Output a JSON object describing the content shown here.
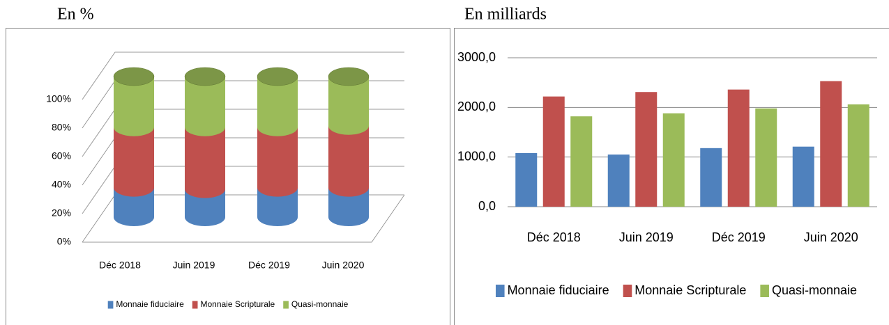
{
  "chart_data": [
    {
      "type": "cylinder",
      "title": "En %",
      "categories": [
        "Déc 2018",
        "Juin 2019",
        "Déc 2019",
        "Juin 2020"
      ],
      "series": [
        {
          "name": "Monnaie fiduciaire",
          "color": "#4f81bd",
          "values": [
            21,
            20,
            21,
            21
          ]
        },
        {
          "name": "Monnaie Scripturale",
          "color": "#c0504d",
          "values": [
            43,
            44,
            43,
            44
          ]
        },
        {
          "name": "Quasi-monnaie",
          "color": "#9bbb59",
          "values": [
            36,
            36,
            36,
            35
          ]
        }
      ],
      "ylim": [
        0,
        100
      ],
      "yticks": [
        {
          "value": 0,
          "label": "0%"
        },
        {
          "value": 20,
          "label": "20%"
        },
        {
          "value": 40,
          "label": "40%"
        },
        {
          "value": 60,
          "label": "60%"
        },
        {
          "value": 80,
          "label": "80%"
        },
        {
          "value": 100,
          "label": "100%"
        }
      ],
      "grid": true,
      "legend": "bottom"
    },
    {
      "type": "bar",
      "title": "En milliards",
      "categories": [
        "Déc 2018",
        "Juin 2019",
        "Déc 2019",
        "Juin 2020"
      ],
      "series": [
        {
          "name": "Monnaie fiduciaire",
          "color": "#4f81bd",
          "values": [
            1080,
            1050,
            1180,
            1210
          ]
        },
        {
          "name": "Monnaie Scripturale",
          "color": "#c0504d",
          "values": [
            2220,
            2310,
            2360,
            2530
          ]
        },
        {
          "name": "Quasi-monnaie",
          "color": "#9bbb59",
          "values": [
            1820,
            1880,
            1980,
            2060
          ]
        }
      ],
      "ylim": [
        0,
        3000
      ],
      "yticks": [
        {
          "value": 0,
          "label": "0,0"
        },
        {
          "value": 1000,
          "label": "1000,0"
        },
        {
          "value": 2000,
          "label": "2000,0"
        },
        {
          "value": 3000,
          "label": "3000,0"
        }
      ],
      "grid": true,
      "legend": "bottom"
    }
  ]
}
